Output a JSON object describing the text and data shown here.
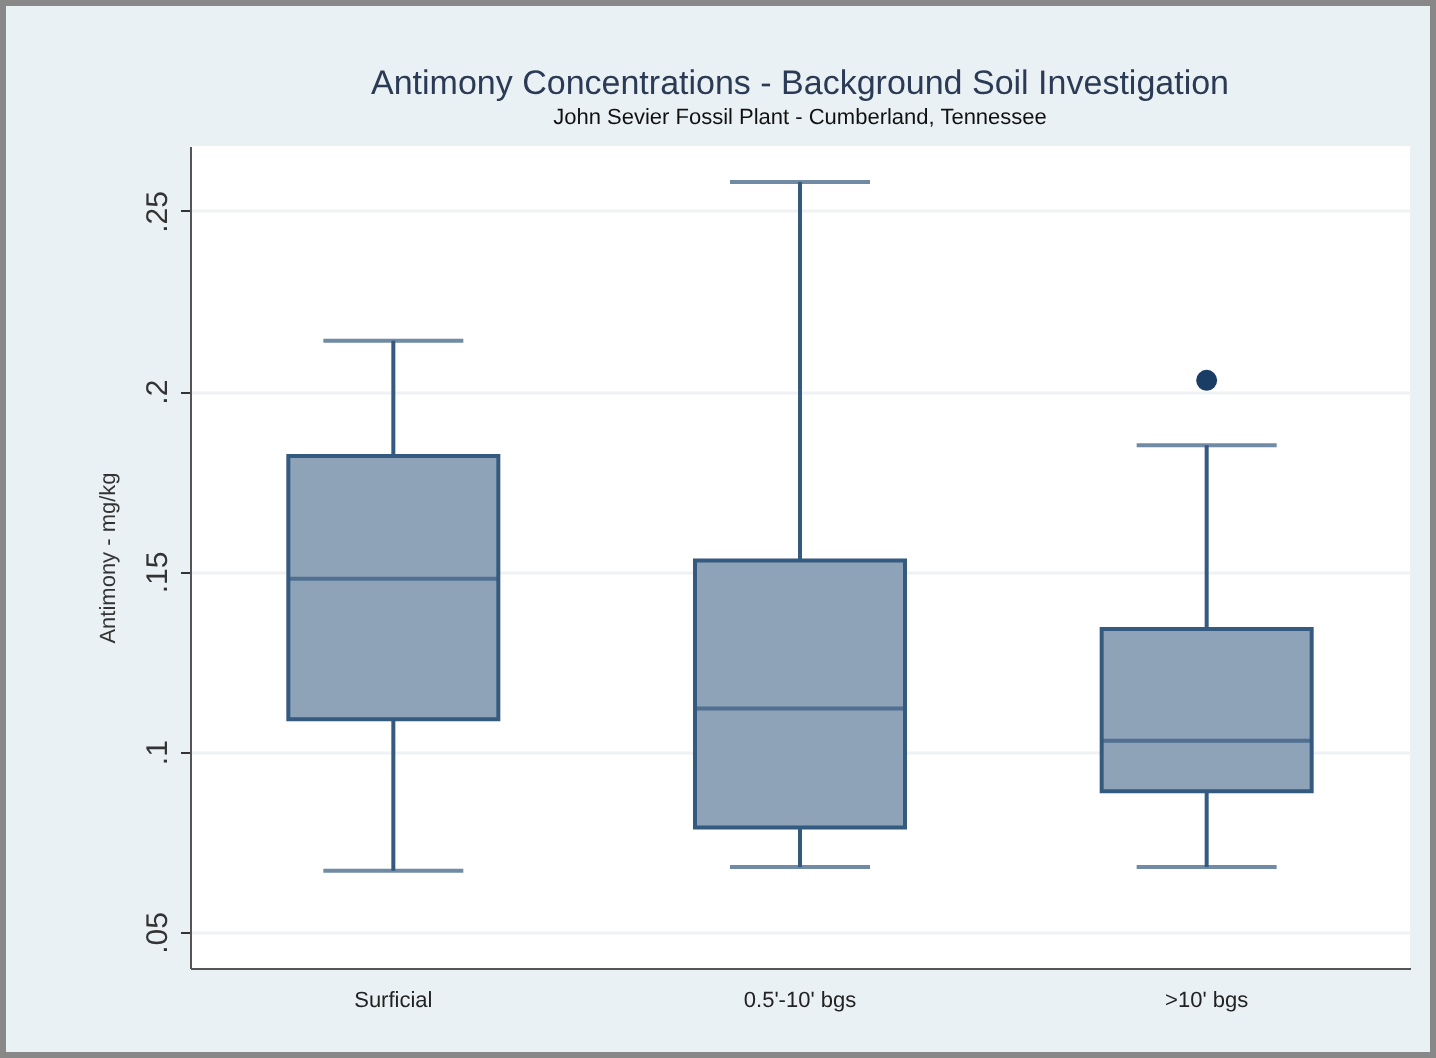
{
  "chart_data": {
    "type": "box",
    "title": "Antimony Concentrations - Background Soil Investigation",
    "subtitle": "John Sevier Fossil Plant - Cumberland, Tennessee",
    "ylabel": "Antimony - mg/kg",
    "categories": [
      "Surficial",
      "0.5'-10' bgs",
      ">10' bgs"
    ],
    "color": "#8ea3b8",
    "boxes": [
      {
        "low": 0.067,
        "q1": 0.109,
        "median": 0.148,
        "q3": 0.182,
        "high": 0.214
      },
      {
        "low": 0.068,
        "q1": 0.079,
        "median": 0.112,
        "q3": 0.153,
        "high": 0.258
      },
      {
        "low": 0.068,
        "q1": 0.089,
        "median": 0.103,
        "q3": 0.134,
        "high": 0.185,
        "outliers": [
          0.203
        ]
      }
    ],
    "ylim": [
      0.04,
      0.268
    ],
    "yticks": [
      {
        "value": 0.05,
        "label": ".05"
      },
      {
        "value": 0.1,
        "label": ".1"
      },
      {
        "value": 0.15,
        "label": ".15"
      },
      {
        "value": 0.2,
        "label": ".2"
      },
      {
        "value": 0.25,
        "label": ".25"
      }
    ],
    "grid": "y"
  }
}
